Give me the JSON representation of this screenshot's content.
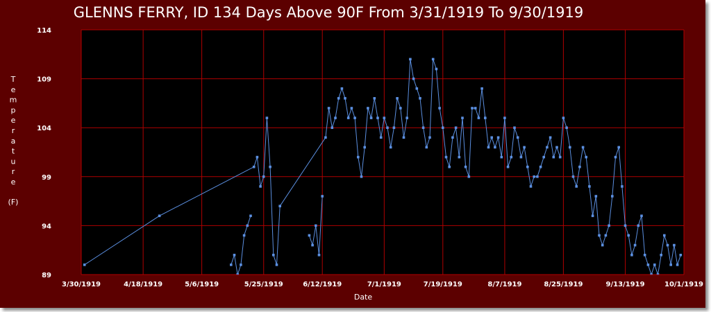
{
  "chart_data": {
    "type": "line",
    "title": "GLENNS FERRY, ID  134 Days Above 90F From 3/31/1919 To 9/30/1919",
    "xlabel": "Date",
    "ylabel": "Temperature",
    "ylabel_unit": "(F)",
    "ylim": [
      89,
      114
    ],
    "yticks": [
      89,
      94,
      99,
      104,
      109,
      114
    ],
    "xticks": [
      "3/30/1919",
      "4/18/1919",
      "5/6/1919",
      "5/25/1919",
      "6/12/1919",
      "7/1/1919",
      "7/19/1919",
      "8/7/1919",
      "8/25/1919",
      "9/13/1919",
      "10/1/1919"
    ],
    "grid": true,
    "series_color": "#5b8fe0",
    "grid_color": "#b00000",
    "series": [
      {
        "x": [
          "3/31/1919",
          "4/23/1919",
          "5/22/1919",
          "5/23/1919",
          "5/24/1919",
          "5/25/1919",
          "5/26/1919",
          "5/27/1919",
          "5/28/1919",
          "5/29/1919",
          "5/30/1919",
          "6/13/1919",
          "6/14/1919",
          "6/15/1919",
          "6/16/1919",
          "6/17/1919",
          "6/18/1919",
          "6/19/1919",
          "6/20/1919",
          "6/21/1919",
          "6/22/1919",
          "6/23/1919",
          "6/24/1919",
          "6/25/1919",
          "6/26/1919",
          "6/27/1919",
          "6/28/1919",
          "6/29/1919",
          "6/30/1919",
          "7/1/1919",
          "7/2/1919",
          "7/3/1919",
          "7/4/1919",
          "7/5/1919",
          "7/6/1919",
          "7/7/1919",
          "7/8/1919",
          "7/9/1919",
          "7/10/1919",
          "7/11/1919",
          "7/12/1919",
          "7/13/1919",
          "7/14/1919",
          "7/15/1919",
          "7/16/1919",
          "7/17/1919",
          "7/18/1919",
          "7/19/1919",
          "7/20/1919",
          "7/21/1919",
          "7/22/1919",
          "7/23/1919",
          "7/24/1919",
          "7/25/1919",
          "7/26/1919",
          "7/27/1919",
          "7/28/1919",
          "7/29/1919",
          "7/30/1919",
          "7/31/1919",
          "8/1/1919",
          "8/2/1919",
          "8/3/1919",
          "8/4/1919",
          "8/5/1919",
          "8/6/1919",
          "8/7/1919",
          "8/8/1919",
          "8/9/1919",
          "8/10/1919",
          "8/11/1919",
          "8/12/1919",
          "8/13/1919",
          "8/14/1919",
          "8/15/1919",
          "8/16/1919",
          "8/17/1919",
          "8/18/1919",
          "8/19/1919",
          "8/20/1919",
          "8/21/1919",
          "8/22/1919",
          "8/23/1919",
          "8/24/1919",
          "8/25/1919",
          "8/26/1919",
          "8/27/1919",
          "8/28/1919",
          "8/29/1919",
          "8/30/1919",
          "8/31/1919",
          "9/1/1919",
          "9/2/1919",
          "9/3/1919",
          "9/4/1919",
          "9/5/1919",
          "9/6/1919",
          "9/7/1919",
          "9/8/1919",
          "9/9/1919",
          "9/10/1919",
          "9/11/1919",
          "9/12/1919",
          "9/13/1919",
          "9/14/1919",
          "9/15/1919",
          "9/16/1919",
          "9/17/1919",
          "9/18/1919",
          "9/19/1919",
          "9/20/1919",
          "9/21/1919",
          "9/22/1919",
          "9/23/1919",
          "9/24/1919",
          "9/25/1919",
          "9/26/1919",
          "9/27/1919",
          "9/28/1919",
          "9/29/1919",
          "9/30/1919"
        ],
        "values": [
          90,
          95,
          100,
          101,
          98,
          99,
          105,
          100,
          91,
          90,
          96,
          103,
          106,
          104,
          105,
          107,
          108,
          107,
          105,
          106,
          105,
          101,
          99,
          102,
          106,
          105,
          107,
          105,
          103,
          105,
          104,
          102,
          104,
          107,
          106,
          103,
          105,
          111,
          109,
          108,
          107,
          104,
          102,
          103,
          111,
          110,
          106,
          104,
          101,
          100,
          103,
          104,
          101,
          105,
          100,
          99,
          106,
          106,
          105,
          108,
          105,
          102,
          103,
          102,
          103,
          101,
          105,
          100,
          101,
          104,
          103,
          101,
          102,
          100,
          98,
          99,
          99,
          100,
          101,
          102,
          103,
          101,
          102,
          101,
          105,
          104,
          102,
          99,
          98,
          100,
          102,
          101,
          98,
          95,
          97,
          93,
          92,
          93,
          94,
          97,
          101,
          102,
          98,
          94,
          93,
          91,
          92,
          94,
          95,
          91,
          90,
          89,
          90,
          89,
          91,
          93,
          92,
          90,
          92,
          90,
          91
        ]
      },
      {
        "x": [
          "5/15/1919",
          "5/16/1919",
          "5/17/1919",
          "5/18/1919",
          "5/19/1919",
          "5/20/1919",
          "5/21/1919"
        ],
        "values": [
          90,
          91,
          89,
          90,
          93,
          94,
          95
        ]
      },
      {
        "x": [
          "6/8/1919",
          "6/9/1919",
          "6/10/1919",
          "6/11/1919",
          "6/12/1919"
        ],
        "values": [
          93,
          92,
          94,
          91,
          97
        ]
      }
    ]
  }
}
